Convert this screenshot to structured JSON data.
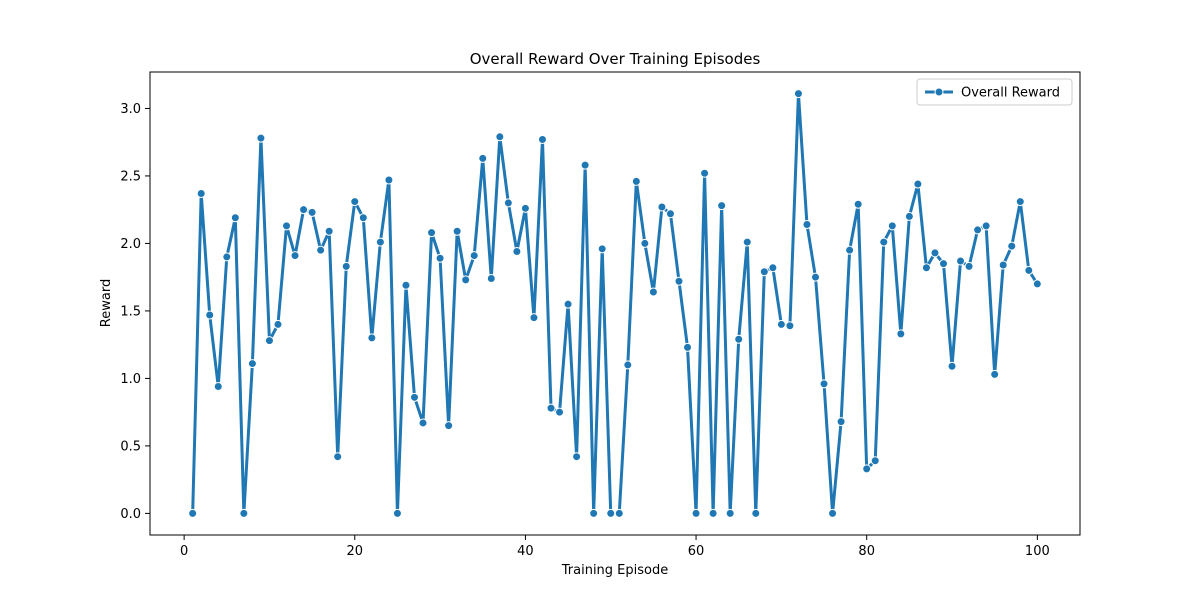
{
  "chart_data": {
    "type": "line",
    "title": "Overall Reward Over Training Episodes",
    "xlabel": "Training Episode",
    "ylabel": "Reward",
    "xlim": [
      -4,
      105
    ],
    "ylim": [
      -0.16,
      3.27
    ],
    "xticks": [
      0,
      20,
      40,
      60,
      80,
      100
    ],
    "yticks": [
      0.0,
      0.5,
      1.0,
      1.5,
      2.0,
      2.5,
      3.0
    ],
    "grid": false,
    "legend_position": "top-right",
    "series": [
      {
        "name": "Overall Reward",
        "color": "#1f77b4",
        "marker": "circle",
        "x": [
          1,
          2,
          3,
          4,
          5,
          6,
          7,
          8,
          9,
          10,
          11,
          12,
          13,
          14,
          15,
          16,
          17,
          18,
          19,
          20,
          21,
          22,
          23,
          24,
          25,
          26,
          27,
          28,
          29,
          30,
          31,
          32,
          33,
          34,
          35,
          36,
          37,
          38,
          39,
          40,
          41,
          42,
          43,
          44,
          45,
          46,
          47,
          48,
          49,
          50,
          51,
          52,
          53,
          54,
          55,
          56,
          57,
          58,
          59,
          60,
          61,
          62,
          63,
          64,
          65,
          66,
          67,
          68,
          69,
          70,
          71,
          72,
          73,
          74,
          75,
          76,
          77,
          78,
          79,
          80,
          81,
          82,
          83,
          84,
          85,
          86,
          87,
          88,
          89,
          90,
          91,
          92,
          93,
          94,
          95,
          96,
          97,
          98,
          99,
          100
        ],
        "values": [
          0.0,
          2.37,
          1.47,
          0.94,
          1.9,
          2.19,
          0.0,
          1.11,
          2.78,
          1.28,
          1.4,
          2.13,
          1.91,
          2.25,
          2.23,
          1.95,
          2.09,
          0.42,
          1.83,
          2.31,
          2.19,
          1.3,
          2.01,
          2.47,
          0.0,
          1.69,
          0.86,
          0.67,
          2.08,
          1.89,
          0.65,
          2.09,
          1.73,
          1.91,
          2.63,
          1.74,
          2.79,
          2.3,
          1.94,
          2.26,
          1.45,
          2.77,
          0.78,
          0.75,
          1.55,
          0.42,
          2.58,
          0.0,
          1.96,
          0.0,
          0.0,
          1.1,
          2.46,
          2.0,
          1.64,
          2.27,
          2.22,
          1.72,
          1.23,
          0.0,
          2.52,
          0.0,
          2.28,
          0.0,
          1.29,
          2.01,
          0.0,
          1.79,
          1.82,
          1.4,
          1.39,
          3.11,
          2.14,
          1.75,
          0.96,
          0.0,
          0.68,
          1.95,
          2.29,
          0.33,
          0.39,
          2.01,
          2.13,
          1.33,
          2.2,
          2.44,
          1.82,
          1.93,
          1.85,
          1.09,
          1.87,
          1.83,
          2.1,
          2.13,
          1.03,
          1.84,
          1.98,
          2.31,
          1.8,
          1.7
        ]
      }
    ]
  }
}
